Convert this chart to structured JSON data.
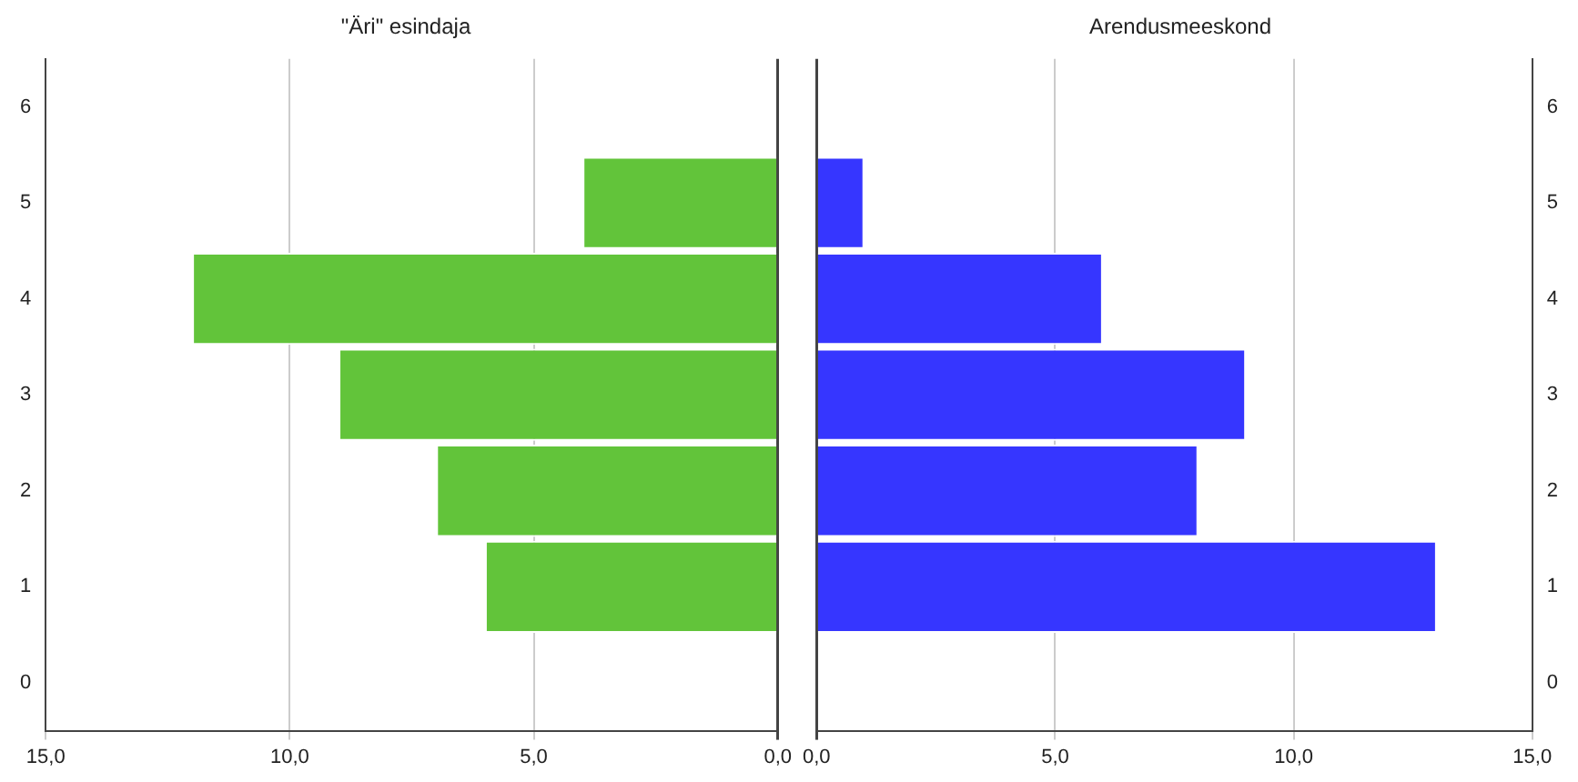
{
  "chart_data": [
    {
      "type": "bar",
      "orientation": "horizontal",
      "title": "\"Äri\" esindaja",
      "categories": [
        "6",
        "5",
        "4",
        "3",
        "2",
        "1",
        "0"
      ],
      "series": [
        {
          "color": "#62c43a",
          "values": [
            null,
            4,
            12,
            9,
            7,
            6,
            null
          ]
        }
      ],
      "xlim": [
        15,
        0
      ],
      "xticks": [
        {
          "value": 15,
          "label": "15,0"
        },
        {
          "value": 10,
          "label": "10,0"
        },
        {
          "value": 5,
          "label": "5,0"
        },
        {
          "value": 0,
          "label": "0,0"
        }
      ],
      "grid": "x",
      "legend": false
    },
    {
      "type": "bar",
      "orientation": "horizontal",
      "title": "Arendusmeeskond",
      "categories": [
        "6",
        "5",
        "4",
        "3",
        "2",
        "1",
        "0"
      ],
      "series": [
        {
          "color": "#3636ff",
          "values": [
            null,
            1,
            6,
            9,
            8,
            13,
            null
          ]
        }
      ],
      "xlim": [
        0,
        15
      ],
      "xticks": [
        {
          "value": 0,
          "label": "0,0"
        },
        {
          "value": 5,
          "label": "5,0"
        },
        {
          "value": 10,
          "label": "10,0"
        },
        {
          "value": 15,
          "label": "15,0"
        }
      ],
      "grid": "x",
      "legend": false
    }
  ]
}
